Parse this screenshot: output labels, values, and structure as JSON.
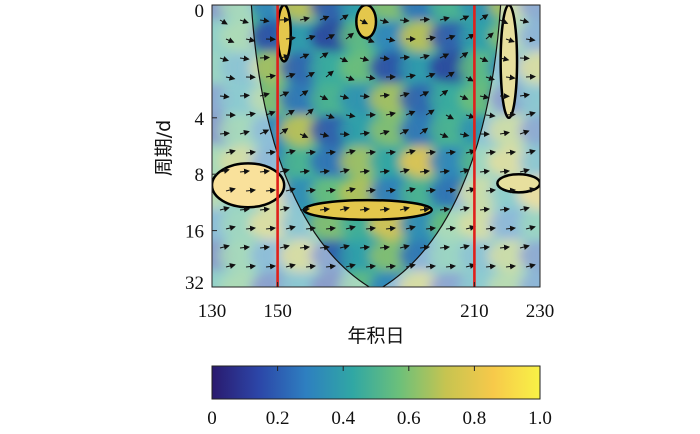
{
  "chart_data": {
    "type": "heatmap",
    "subtype": "wavelet-coherence",
    "title": "",
    "xlabel": "年积日",
    "ylabel": "周期/d",
    "x_ticks": [
      "130",
      "150",
      "210",
      "230"
    ],
    "x_tick_values": [
      130,
      150,
      210,
      230
    ],
    "y_ticks": [
      "0",
      "4",
      "8",
      "16",
      "32"
    ],
    "y_tick_values": [
      0,
      4,
      8,
      16,
      32
    ],
    "xlim": [
      130,
      230
    ],
    "y_scale": "log2-period",
    "colorbar": {
      "min": 0,
      "max": 1,
      "ticks": [
        "0",
        "0.2",
        "0.4",
        "0.6",
        "0.8",
        "1.0"
      ],
      "colors": [
        "#2a1a6e",
        "#2c46a8",
        "#2e7fc0",
        "#30a7a4",
        "#6cc07a",
        "#c7c450",
        "#f7c94a",
        "#f8f246"
      ]
    },
    "vertical_lines": [
      {
        "x": 150,
        "color": "#e0201b"
      },
      {
        "x": 210,
        "color": "#e0201b"
      }
    ],
    "cone_of_influence": {
      "apex_x": 180,
      "apex_period": 32
    },
    "significant_regions": [
      {
        "x": [
          130,
          152
        ],
        "period": [
          7,
          12
        ],
        "level": 0.85
      },
      {
        "x": [
          158,
          197
        ],
        "period": [
          11,
          14
        ],
        "level": 0.8
      },
      {
        "x": [
          150,
          154
        ],
        "period": [
          0,
          2
        ],
        "level": 0.8
      },
      {
        "x": [
          174,
          180
        ],
        "period": [
          0,
          1.5
        ],
        "level": 0.8
      },
      {
        "x": [
          218,
          223
        ],
        "period": [
          0,
          4
        ],
        "level": 0.75
      },
      {
        "x": [
          217,
          230
        ],
        "period": [
          8,
          10
        ],
        "level": 0.75
      }
    ]
  }
}
